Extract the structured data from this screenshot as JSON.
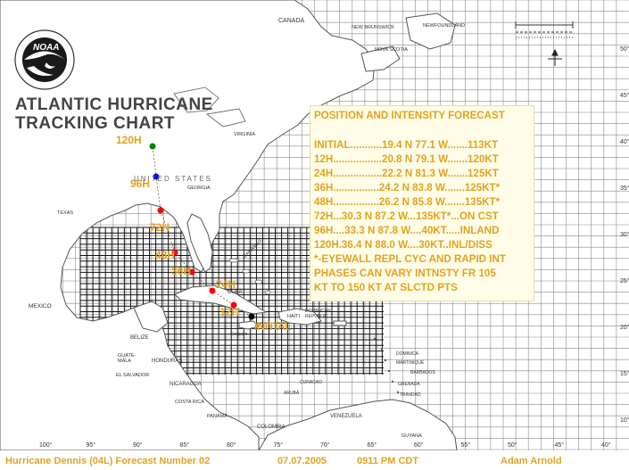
{
  "chart": {
    "title_line1": "ATLANTIC HURRICANE",
    "title_line2": "TRACKING CHART",
    "logo_text": "NOAA",
    "seal_text": "NATIONAL OCEANIC AND ATMOSPHERIC ADMINISTRATION · U.S. DEPARTMENT OF COMMERCE"
  },
  "forecast_box": {
    "heading": "POSITION AND INTENSITY FORECAST",
    "lines": [
      "INITIAL...........19.4 N  77.1 W.......113KT",
      "12H.................20.8 N  79.1 W.......120KT",
      "24H.................22.2 N  81.3 W.......125KT",
      "36H................24.2 N  83.8 W.......125KT*",
      "48H................26.2 N  85.8 W.......135KT*",
      "72H...30.3 N  87.2 W...135KT*...ON CST",
      "96H....33.3 N  87.8 W....40KT.....INLAND",
      "120H.36.4 N  88.0 W....30KT..INL/DISS",
      "*-EYEWALL REPL CYC AND RAPID INT",
      "PHASES CAN VARY INTNSTY FR 105",
      "KT TO 150 KT AT SLCTD PTS"
    ]
  },
  "forecast_points": [
    {
      "label": "INITIAL",
      "color": "#000000"
    },
    {
      "label": "12H",
      "color": "#ff0000"
    },
    {
      "label": "24H",
      "color": "#ff0000"
    },
    {
      "label": "36H",
      "color": "#ff0000"
    },
    {
      "label": "48H",
      "color": "#ff0000"
    },
    {
      "label": "72H",
      "color": "#ff0000"
    },
    {
      "label": "96H",
      "color": "#0000ff"
    },
    {
      "label": "120H",
      "color": "#008000"
    }
  ],
  "place_labels": {
    "canada": "CANADA",
    "united_states": "UNITED STATES",
    "mexico": "MEXICO",
    "cuba": "CUBA",
    "bahamas": "BAHAMAS",
    "belize": "BELIZE",
    "honduras": "HONDURAS",
    "guatemala": "GUATE-MALA",
    "el_salvador": "EL SALVADOR",
    "nicaragua": "NICARAGUA",
    "costa_rica": "COSTA RICA",
    "panama": "PANAMA",
    "colombia": "COLOMBIA",
    "venezuela": "VENEZUELA",
    "guyana": "GUYANA",
    "haiti": "HAITI",
    "dominican_republic": "DOMINICAN REPUBLIC",
    "newfoundland": "NEWFOUNDLAND",
    "nova_scotia": "NOVA SCOTIA",
    "new_brunswick": "NEW BRUNSWICK",
    "texas": "TEXAS",
    "georgia": "GEORGIA",
    "virginia": "VIRGINIA",
    "jamaica": "Kingston",
    "barbados": "BARBADOS",
    "trinidad": "TRINIDAD",
    "aruba": "ARUBA",
    "curacao": "CURACAO",
    "dominica": "DOMINICA",
    "martinique": "MARTINIQUE",
    "grenada": "GRENADA"
  },
  "longitude_labels": [
    "100°",
    "95°",
    "90°",
    "85°",
    "80°",
    "75°",
    "70°",
    "65°",
    "60°",
    "55°",
    "50°",
    "45°",
    "40°"
  ],
  "latitude_labels": [
    "50°",
    "45°",
    "40°",
    "35°",
    "30°",
    "25°",
    "20°",
    "15°",
    "10°"
  ],
  "footer": {
    "storm": "Hurricane Dennis (04L) Forecast Number 02",
    "date": "07.07.2005",
    "time": "0911 PM CDT",
    "author": "Adam Arnold"
  },
  "colors": {
    "forecast_text": "#e0a322",
    "forecast_box_bg": "#fffde7",
    "land_fill": "#ffffff",
    "water_fill": "#ffffff",
    "grid": "#777777",
    "watch_grid": "#000000"
  }
}
